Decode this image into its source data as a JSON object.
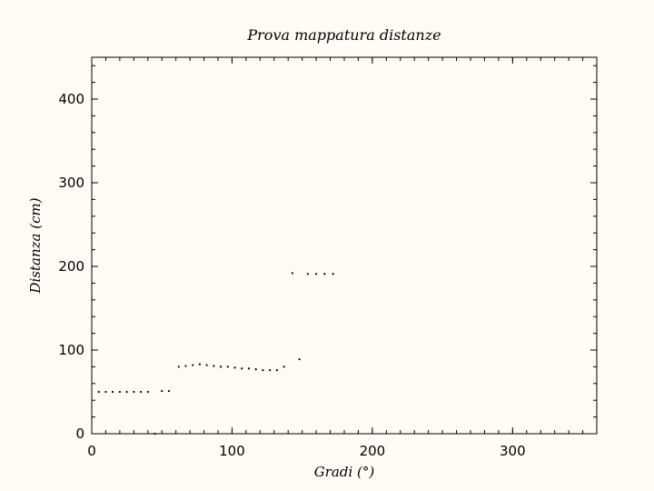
{
  "chart_data": {
    "type": "scatter",
    "title": "Prova mappatura distanze",
    "xlabel": "Gradi (°)",
    "ylabel": "Distanza (cm)",
    "xlim": [
      0,
      360
    ],
    "ylim": [
      0,
      450
    ],
    "x_ticks": [
      0,
      100,
      200,
      300
    ],
    "y_ticks": [
      0,
      100,
      200,
      300,
      400
    ],
    "x_minor_step": 10,
    "y_minor_step": 20,
    "grid": false,
    "colors": {
      "background": "#fffcf6",
      "marker": "#000000",
      "axis": "#000000"
    },
    "series": [
      {
        "values": [
          [
            5,
            50
          ],
          [
            10,
            50
          ],
          [
            15,
            50
          ],
          [
            20,
            50
          ],
          [
            25,
            50
          ],
          [
            30,
            50
          ],
          [
            35,
            50
          ],
          [
            40,
            50
          ],
          [
            45,
            0
          ],
          [
            50,
            51
          ],
          [
            55,
            51
          ],
          [
            62,
            80
          ],
          [
            67,
            81
          ],
          [
            72,
            82
          ],
          [
            77,
            83
          ],
          [
            82,
            82
          ],
          [
            87,
            81
          ],
          [
            92,
            80
          ],
          [
            97,
            80
          ],
          [
            102,
            79
          ],
          [
            107,
            78
          ],
          [
            112,
            78
          ],
          [
            117,
            77
          ],
          [
            122,
            76
          ],
          [
            127,
            76
          ],
          [
            132,
            76
          ],
          [
            137,
            80
          ],
          [
            143,
            192
          ],
          [
            148,
            89
          ],
          [
            154,
            191
          ],
          [
            160,
            191
          ],
          [
            166,
            191
          ],
          [
            172,
            191
          ]
        ]
      }
    ]
  }
}
